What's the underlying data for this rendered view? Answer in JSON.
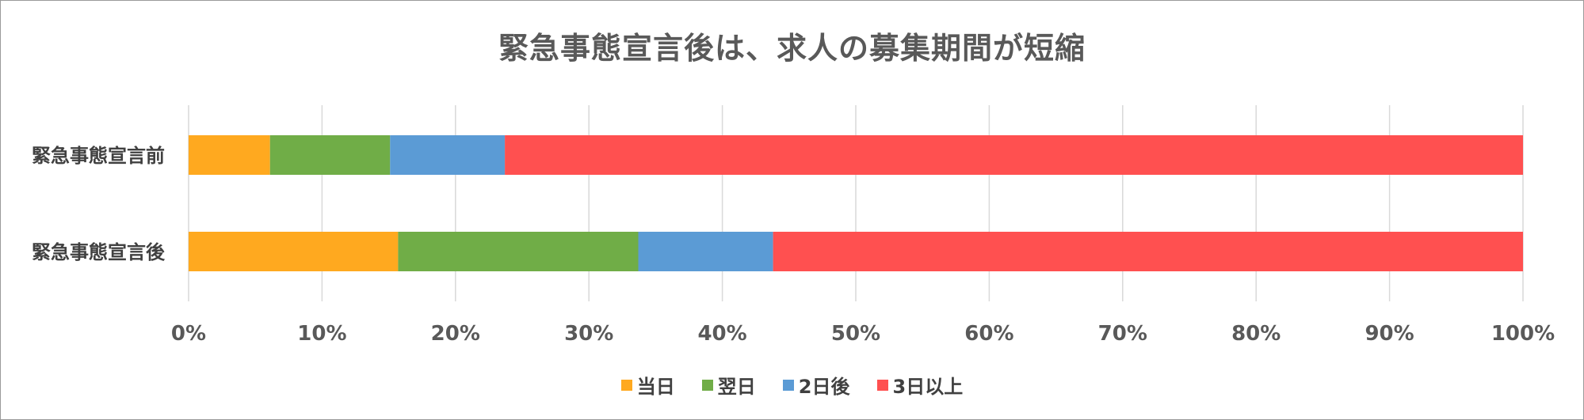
{
  "chart_data": {
    "type": "bar",
    "orientation": "horizontal",
    "stacked": "percent",
    "title": "緊急事態宣言後は、求人の募集期間が短縮",
    "categories": [
      "緊急事態宣言前",
      "緊急事態宣言後"
    ],
    "series": [
      {
        "name": "当日",
        "color": "#FFA91F",
        "values": [
          6.1,
          15.7
        ]
      },
      {
        "name": "翌日",
        "color": "#70AD47",
        "values": [
          9.0,
          18.0
        ]
      },
      {
        "name": "2日後",
        "color": "#5B9BD5",
        "values": [
          8.6,
          10.1
        ]
      },
      {
        "name": "3日以上",
        "color": "#FF5050",
        "values": [
          76.3,
          56.2
        ]
      }
    ],
    "xlim": [
      0,
      100
    ],
    "x_ticks": [
      "0%",
      "10%",
      "20%",
      "30%",
      "40%",
      "50%",
      "60%",
      "70%",
      "80%",
      "90%",
      "100%"
    ],
    "grid": true,
    "legend_position": "bottom"
  }
}
